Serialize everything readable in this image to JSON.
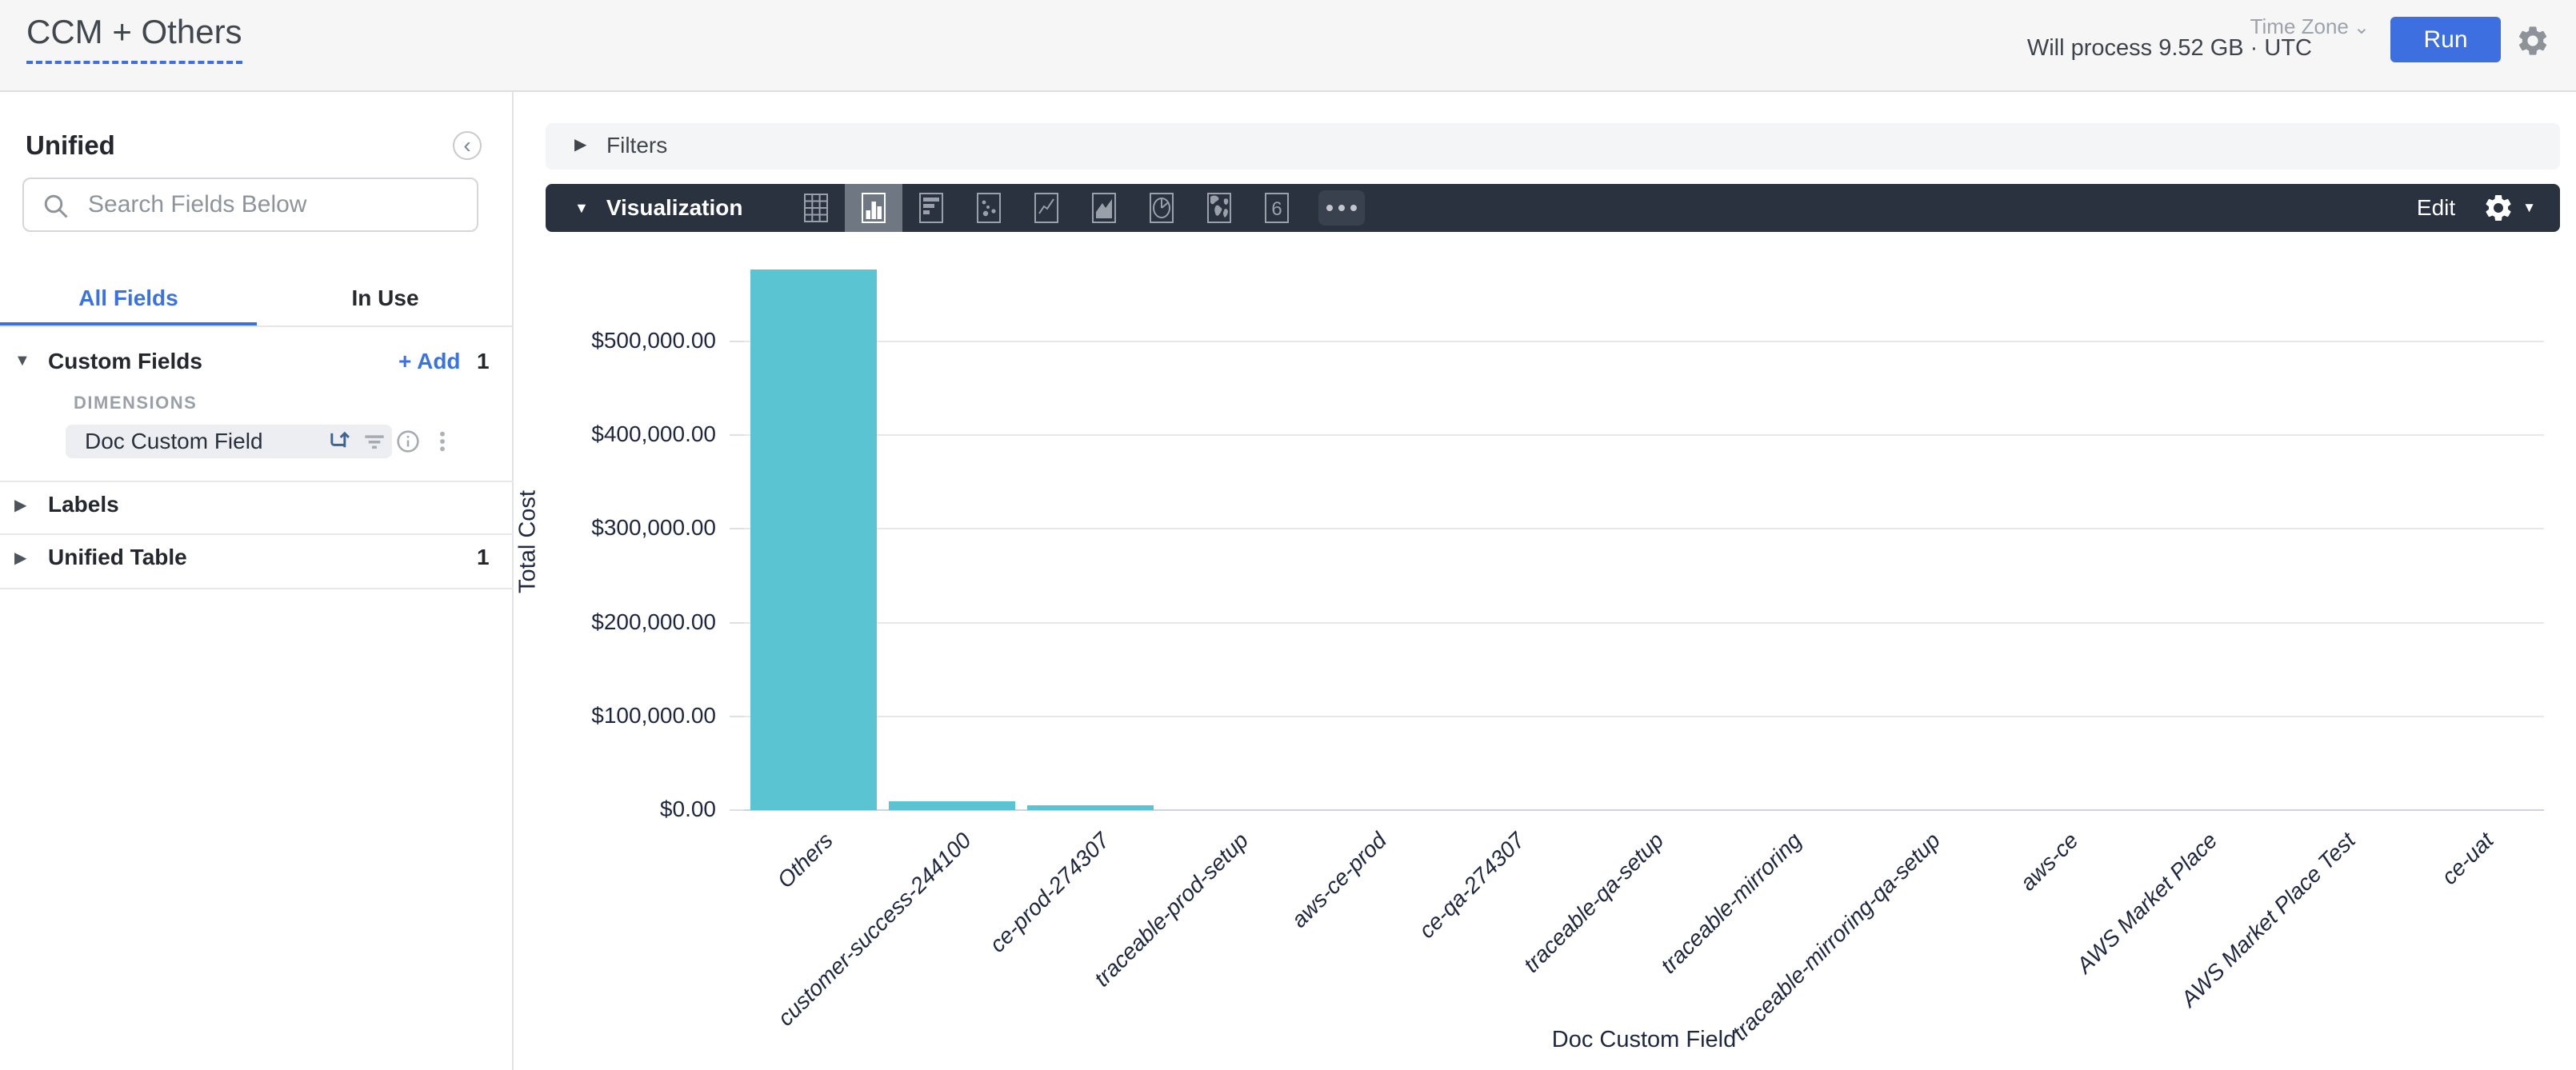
{
  "header": {
    "title": "CCM + Others",
    "process_info": "Will process 9.52 GB · UTC",
    "time_zone_label": "Time Zone",
    "run_label": "Run"
  },
  "sidebar": {
    "panel_title": "Unified",
    "search_placeholder": "Search Fields Below",
    "tabs": {
      "all_fields": "All Fields",
      "in_use": "In Use"
    },
    "custom_fields": {
      "label": "Custom Fields",
      "add_label": "+ Add",
      "count": "1"
    },
    "dimensions_label": "DIMENSIONS",
    "field_name": "Doc Custom Field",
    "sections": [
      {
        "label": "Labels",
        "count": ""
      },
      {
        "label": "Unified Table",
        "count": "1"
      }
    ]
  },
  "main": {
    "filters_label": "Filters",
    "visualization_label": "Visualization",
    "edit_label": "Edit",
    "viz_single_value_glyph": "6"
  },
  "chart_data": {
    "type": "bar",
    "title": "",
    "xlabel": "Doc Custom Field",
    "ylabel": "Total Cost",
    "categories": [
      "Others",
      "customer-success-244100",
      "ce-prod-274307",
      "traceable-prod-setup",
      "aws-ce-prod",
      "ce-qa-274307",
      "traceable-qa-setup",
      "traceable-mirroring",
      "traceable-mirroring-qa-setup",
      "aws-ce",
      "AWS Market Place",
      "AWS Market Place Test",
      "ce-uat"
    ],
    "values": [
      577000,
      9400,
      5500,
      0,
      0,
      0,
      0,
      0,
      0,
      0,
      0,
      0,
      0
    ],
    "y_ticks": [
      {
        "value": 0,
        "label": "$0.00"
      },
      {
        "value": 100000,
        "label": "$100,000.00"
      },
      {
        "value": 200000,
        "label": "$200,000.00"
      },
      {
        "value": 300000,
        "label": "$300,000.00"
      },
      {
        "value": 400000,
        "label": "$400,000.00"
      },
      {
        "value": 500000,
        "label": "$500,000.00"
      }
    ],
    "ylim": [
      0,
      577000
    ],
    "grid": true,
    "legend": "none",
    "bar_color": "#5AC4D3"
  }
}
